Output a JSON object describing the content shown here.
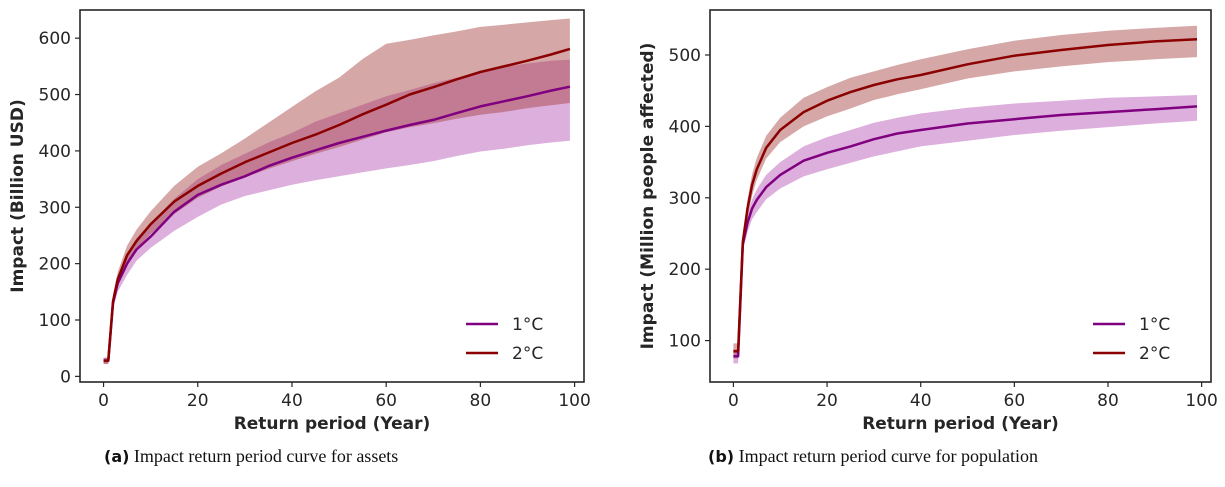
{
  "chart_data": [
    {
      "type": "line",
      "xlabel": "Return period (Year)",
      "ylabel": "Impact (Billion USD)",
      "xlim": [
        -5,
        102
      ],
      "ylim": [
        -10,
        650
      ],
      "xticks": [
        0,
        20,
        40,
        60,
        80,
        100
      ],
      "yticks": [
        0,
        100,
        200,
        300,
        400,
        500,
        600
      ],
      "legend": "lower-right",
      "grid": false,
      "caption_tag": "(a)",
      "caption_text": "Impact return period curve for assets",
      "series": [
        {
          "name": "1°C",
          "color": "#800080",
          "band_color": "#b34db3",
          "x": [
            0,
            1,
            2,
            3,
            5,
            7,
            10,
            15,
            20,
            25,
            30,
            35,
            40,
            45,
            50,
            55,
            60,
            65,
            70,
            75,
            80,
            85,
            90,
            95,
            99
          ],
          "y": [
            28,
            28,
            130,
            165,
            200,
            225,
            248,
            292,
            322,
            340,
            355,
            373,
            388,
            401,
            414,
            425,
            436,
            446,
            455,
            467,
            479,
            488,
            497,
            507,
            514
          ],
          "lower": [
            22,
            22,
            120,
            150,
            180,
            205,
            228,
            258,
            283,
            305,
            320,
            330,
            340,
            348,
            355,
            362,
            369,
            375,
            382,
            391,
            399,
            404,
            410,
            415,
            418
          ],
          "upper": [
            33,
            33,
            140,
            178,
            218,
            245,
            272,
            315,
            350,
            375,
            395,
            415,
            432,
            452,
            467,
            482,
            497,
            508,
            520,
            530,
            541,
            549,
            555,
            560,
            562
          ]
        },
        {
          "name": "2°C",
          "color": "#8b0000",
          "band_color": "#a33b3b",
          "x": [
            0,
            1,
            2,
            3,
            5,
            7,
            10,
            15,
            20,
            25,
            30,
            35,
            40,
            45,
            50,
            55,
            60,
            65,
            70,
            75,
            80,
            85,
            90,
            95,
            99
          ],
          "y": [
            28,
            28,
            133,
            172,
            215,
            240,
            270,
            310,
            338,
            360,
            380,
            397,
            414,
            429,
            446,
            465,
            482,
            500,
            513,
            527,
            540,
            550,
            560,
            571,
            581
          ],
          "lower": [
            22,
            22,
            123,
            160,
            198,
            225,
            253,
            288,
            317,
            337,
            353,
            368,
            382,
            395,
            407,
            420,
            433,
            442,
            449,
            457,
            464,
            469,
            476,
            481,
            485
          ],
          "upper": [
            33,
            33,
            145,
            185,
            232,
            260,
            293,
            338,
            372,
            396,
            422,
            450,
            478,
            506,
            530,
            563,
            590,
            597,
            605,
            612,
            620,
            624,
            628,
            632,
            635
          ]
        }
      ]
    },
    {
      "type": "line",
      "xlabel": "Return period (Year)",
      "ylabel": "Impact (Million people affected)",
      "xlim": [
        -5,
        102
      ],
      "ylim": [
        42,
        563
      ],
      "xticks": [
        0,
        20,
        40,
        60,
        80,
        100
      ],
      "yticks": [
        100,
        200,
        300,
        400,
        500
      ],
      "legend": "lower-right",
      "grid": false,
      "caption_tag": "(b)",
      "caption_text": "Impact return period curve for population",
      "series": [
        {
          "name": "1°C",
          "color": "#800080",
          "band_color": "#b34db3",
          "x": [
            0,
            1,
            2,
            3,
            4,
            5,
            7,
            10,
            15,
            20,
            25,
            30,
            35,
            40,
            50,
            60,
            70,
            80,
            90,
            99
          ],
          "y": [
            78,
            78,
            235,
            265,
            285,
            297,
            315,
            332,
            352,
            363,
            372,
            382,
            390,
            395,
            404,
            410,
            416,
            420,
            424,
            428
          ],
          "lower": [
            68,
            68,
            225,
            252,
            270,
            280,
            298,
            313,
            330,
            340,
            349,
            358,
            365,
            372,
            380,
            388,
            394,
            399,
            404,
            408
          ],
          "upper": [
            88,
            88,
            245,
            277,
            298,
            312,
            332,
            350,
            372,
            385,
            395,
            405,
            412,
            418,
            426,
            432,
            436,
            440,
            442,
            444
          ]
        },
        {
          "name": "2°C",
          "color": "#8b0000",
          "band_color": "#a33b3b",
          "x": [
            0,
            1,
            2,
            3,
            4,
            5,
            7,
            10,
            15,
            20,
            25,
            30,
            35,
            40,
            50,
            60,
            70,
            80,
            90,
            99
          ],
          "y": [
            85,
            85,
            238,
            285,
            318,
            340,
            370,
            395,
            420,
            436,
            448,
            458,
            466,
            472,
            487,
            499,
            507,
            514,
            519,
            522
          ],
          "lower": [
            75,
            75,
            228,
            272,
            303,
            325,
            355,
            378,
            400,
            414,
            425,
            437,
            445,
            452,
            467,
            477,
            484,
            490,
            494,
            497
          ],
          "upper": [
            96,
            96,
            248,
            298,
            333,
            356,
            387,
            412,
            440,
            455,
            468,
            477,
            486,
            494,
            508,
            520,
            528,
            534,
            538,
            541
          ]
        }
      ]
    }
  ]
}
